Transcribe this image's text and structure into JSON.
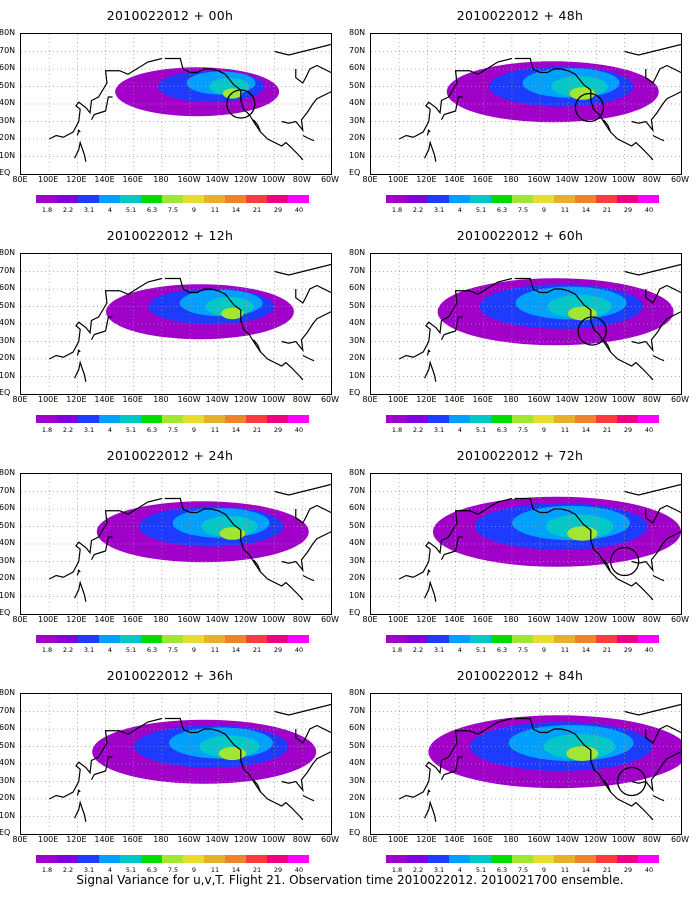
{
  "panels": [
    {
      "title": "2010022012 + 00h",
      "intensity": 0.35,
      "ring": {
        "lon": -124,
        "lat": 40
      }
    },
    {
      "title": "2010022012 + 48h",
      "intensity": 0.55,
      "ring": {
        "lon": -125,
        "lat": 38
      }
    },
    {
      "title": "2010022012 + 12h",
      "intensity": 0.45,
      "ring": null
    },
    {
      "title": "2010022012 + 60h",
      "intensity": 0.65,
      "ring": {
        "lon": -123,
        "lat": 36
      }
    },
    {
      "title": "2010022012 + 24h",
      "intensity": 0.55,
      "ring": null
    },
    {
      "title": "2010022012 + 72h",
      "intensity": 0.7,
      "ring": {
        "lon": -100,
        "lat": 30
      }
    },
    {
      "title": "2010022012 + 36h",
      "intensity": 0.6,
      "ring": null
    },
    {
      "title": "2010022012 + 84h",
      "intensity": 0.75,
      "ring": {
        "lon": -95,
        "lat": 30
      }
    }
  ],
  "lat_labels": [
    "80N",
    "70N",
    "60N",
    "50N",
    "40N",
    "30N",
    "20N",
    "10N",
    "EQ"
  ],
  "lon_labels": [
    "80E",
    "100E",
    "120E",
    "140E",
    "160E",
    "180",
    "160W",
    "140W",
    "120W",
    "100W",
    "80W",
    "60W"
  ],
  "colorbar": {
    "labels": [
      "1.8",
      "2.2",
      "3.1",
      "4",
      "5.1",
      "6.3",
      "7.5",
      "9",
      "11",
      "14",
      "21",
      "29",
      "40"
    ],
    "colors": [
      "#a000c8",
      "#8200dc",
      "#1e3cff",
      "#00a0ff",
      "#00c8c8",
      "#00dc00",
      "#a0e632",
      "#e6dc32",
      "#e6af2d",
      "#f08228",
      "#fa3c3c",
      "#f00082",
      "#ff00ff"
    ]
  },
  "caption": "Signal Variance for u,v,T. Flight 21. Observation time 2010022012. 2010021700 ensemble."
}
